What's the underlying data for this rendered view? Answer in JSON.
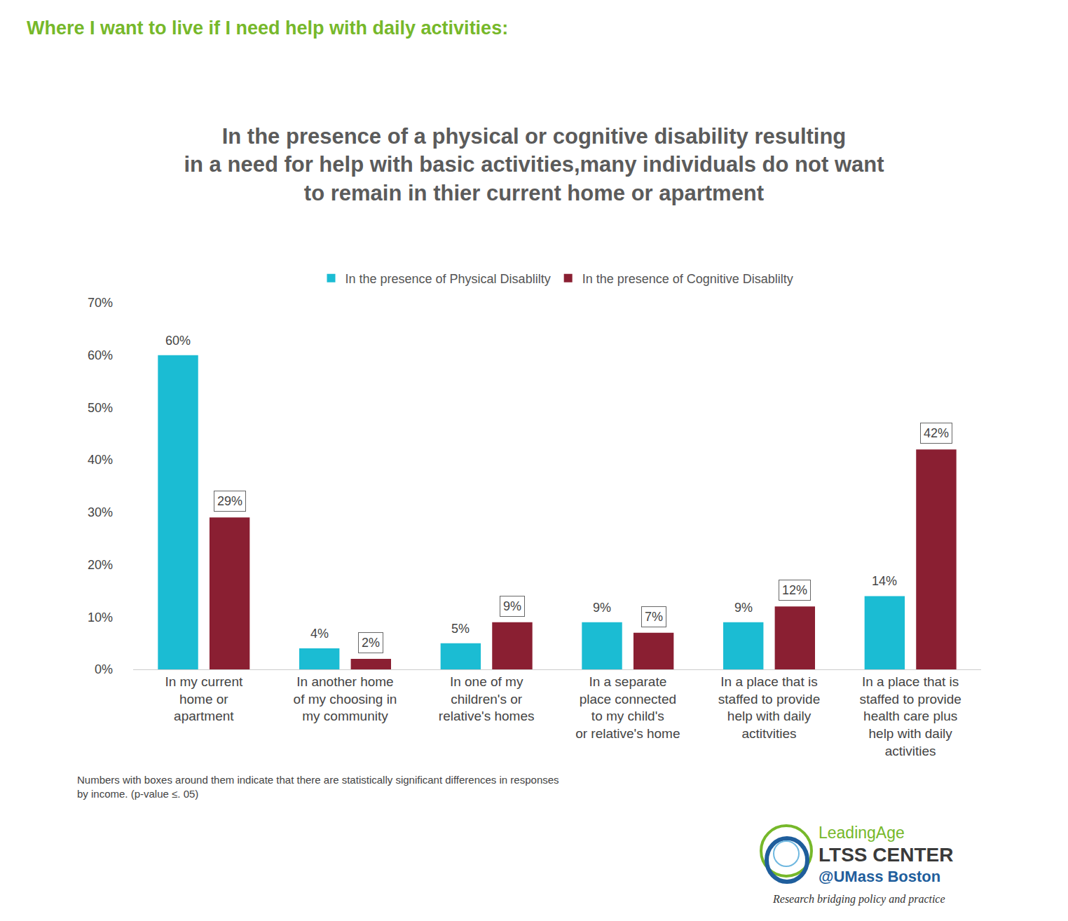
{
  "chart_data": {
    "type": "bar",
    "heading": "Where I want to live if I need help with daily activities:",
    "title": "In the presence of a physical or cognitive disability resulting\nin a need for help with basic activities,many individuals do not want\nto remain in thier current home or apartment",
    "categories": [
      "In my current\nhome or\napartment",
      "In another home\nof my choosing in\nmy community",
      "In one of my\nchildren's or\nrelative's homes",
      "In a separate\nplace connected\nto my child's\nor relative's home",
      "In a place that is\nstaffed to provide\nhelp with daily\nactitvities",
      "In a place that is\nstaffed to provide\nhealth care plus\nhelp with daily\nactivities"
    ],
    "series": [
      {
        "name": "In the presence of Physical Disablilty",
        "color": "#1bbcd3",
        "values": [
          60,
          4,
          5,
          9,
          9,
          14
        ],
        "value_labels": [
          "60%",
          "4%",
          "5%",
          "9%",
          "9%",
          "14%"
        ],
        "significant": [
          false,
          false,
          false,
          false,
          false,
          false
        ]
      },
      {
        "name": "In the presence of Cognitive Disablilty",
        "color": "#8a1f32",
        "values": [
          29,
          2,
          9,
          7,
          12,
          42
        ],
        "value_labels": [
          "29%",
          "2%",
          "9%",
          "7%",
          "12%",
          "42%"
        ],
        "significant": [
          true,
          true,
          true,
          true,
          true,
          true
        ]
      }
    ],
    "ylim": [
      0,
      70
    ],
    "yticks": [
      {
        "value": 0,
        "label": "0%"
      },
      {
        "value": 10,
        "label": "10%"
      },
      {
        "value": 20,
        "label": "20%"
      },
      {
        "value": 30,
        "label": "30%"
      },
      {
        "value": 40,
        "label": "40%"
      },
      {
        "value": 50,
        "label": "50%"
      },
      {
        "value": 60,
        "label": "60%"
      },
      {
        "value": 70,
        "label": "70%"
      }
    ],
    "grid": false,
    "legend": "top",
    "data_labels": true,
    "note": "Numbers with boxes around them indicate that there are statistically significant differences in responses\nby income. (p-value ≤. 05)",
    "source_logo": [
      "LeadingAge",
      "LTSS CENTER",
      "@UMass Boston",
      "Research bridging policy and practice"
    ]
  }
}
